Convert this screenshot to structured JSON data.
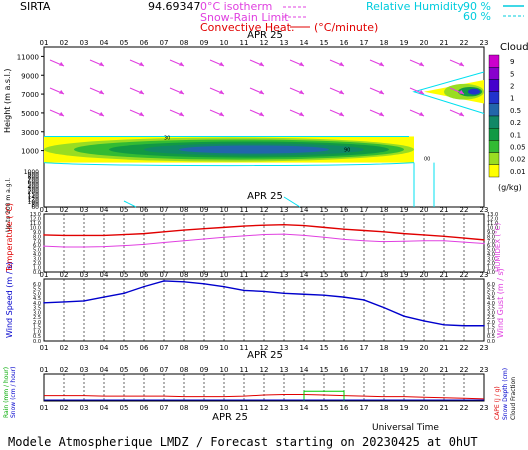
{
  "header": {
    "site": "SIRTA",
    "coords": "94.69347",
    "isotherm_label": "0°C isotherm",
    "snow_rain_label": "Snow-Rain Limit",
    "convective_label": "Convective Heat.",
    "convective_unit": "(°C/minute)",
    "rh_label": "Relative Humidity",
    "rh_90": "90 %",
    "rh_60": "60 %"
  },
  "colors": {
    "magenta": "#e040e0",
    "cyan": "#00e0f0",
    "red": "#e00000",
    "blue": "#0000cc",
    "green": "#00cc00",
    "dashed": "#000000"
  },
  "footer": {
    "universal_time": "Universal Time",
    "model": "Modele Atmospherique LMDZ / Forecast starting on 20230425 at 0hUT"
  },
  "chart_data": [
    {
      "type": "heatmap",
      "name": "clouds-wind-profile",
      "date_label": "APR 25",
      "hours": [
        "01",
        "02",
        "03",
        "04",
        "05",
        "06",
        "07",
        "08",
        "09",
        "10",
        "11",
        "12",
        "13",
        "14",
        "15",
        "16",
        "17",
        "18",
        "19",
        "20",
        "21",
        "22",
        "23"
      ],
      "ylabel": "Height (m a.s.l.)",
      "ylabel_low": "Up to 200 m a.g.l.",
      "yticks_upper": [
        11000,
        9000,
        7000,
        5000,
        3000,
        1000
      ],
      "yticks_lower": [
        1000,
        900,
        800,
        700,
        600,
        500,
        400,
        300,
        200,
        150,
        140,
        120,
        100,
        80,
        60
      ],
      "colorbar_title": "Clouds",
      "colorbar_unit": "(g/kg)",
      "colorbar_levels": [
        "9",
        "5",
        "2",
        "1",
        "0.5",
        "0.2",
        "0.1",
        "0.05",
        "0.02",
        "0.01"
      ],
      "colorbar_colors": [
        "#cc00cc",
        "#8800cc",
        "#4400cc",
        "#2233cc",
        "#2266aa",
        "#118866",
        "#119944",
        "#33bb33",
        "#99dd22",
        "#ffff00"
      ],
      "cloud_layers": [
        {
          "hours": [
            1,
            19.5
          ],
          "height_m": [
            1000,
            2500
          ],
          "max_level": "0.5"
        },
        {
          "hours": [
            19.5,
            23
          ],
          "height_m": [
            6000,
            8500
          ],
          "max_level": "1"
        }
      ],
      "contour_labels": [
        "30",
        "90",
        "00"
      ]
    },
    {
      "type": "line",
      "name": "temperature-humidex",
      "date_label": "APR 25",
      "ylabel": "Temperature (°C)",
      "ylabel_right": "HUMIDEX (°C)",
      "yticks": [
        "13.0",
        "12.0",
        "11.0",
        "10.0",
        "9.0",
        "8.0",
        "7.0",
        "6.0",
        "5.0",
        "4.0",
        "3.0",
        "2.0",
        "1.0",
        "0.0"
      ],
      "ylim": [
        0,
        13
      ],
      "x": [
        1,
        2,
        3,
        4,
        5,
        6,
        7,
        8,
        9,
        10,
        11,
        12,
        13,
        14,
        15,
        16,
        17,
        18,
        19,
        20,
        21,
        22,
        23
      ],
      "series": [
        {
          "name": "Temperature",
          "values": [
            8.3,
            8.2,
            8.2,
            8.2,
            8.4,
            8.6,
            9.0,
            9.4,
            9.7,
            10.0,
            10.3,
            10.5,
            10.6,
            10.4,
            10.0,
            9.6,
            9.3,
            9.0,
            8.6,
            8.3,
            8.0,
            7.6,
            7.2
          ]
        },
        {
          "name": "Humidex",
          "values": [
            5.8,
            5.6,
            5.6,
            5.7,
            5.9,
            6.2,
            6.6,
            7.0,
            7.4,
            7.8,
            8.1,
            8.4,
            8.5,
            8.2,
            7.8,
            7.3,
            7.0,
            6.8,
            6.9,
            7.0,
            7.0,
            6.7,
            6.4
          ]
        }
      ]
    },
    {
      "type": "line",
      "name": "wind-speed-gust",
      "date_label": "APR 25",
      "ylabel": "Wind Speed (m / s)",
      "ylabel_right": "Wind Gust (m / s)",
      "yticks": [
        "6.0",
        "5.5",
        "5.0",
        "4.5",
        "4.0",
        "3.5",
        "3.0",
        "2.5",
        "2.0",
        "1.5",
        "1.0",
        "0.5",
        "0.0"
      ],
      "ylim": [
        0,
        6.5
      ],
      "x": [
        1,
        2,
        3,
        4,
        5,
        6,
        7,
        8,
        9,
        10,
        11,
        12,
        13,
        14,
        15,
        16,
        17,
        18,
        19,
        20,
        21,
        22,
        23
      ],
      "series": [
        {
          "name": "Wind Speed",
          "values": [
            4.0,
            4.1,
            4.2,
            4.6,
            5.0,
            5.7,
            6.3,
            6.2,
            6.0,
            5.7,
            5.3,
            5.2,
            5.0,
            4.9,
            4.8,
            4.6,
            4.3,
            3.5,
            2.6,
            2.1,
            1.7,
            1.6,
            1.6
          ]
        }
      ]
    },
    {
      "type": "line",
      "name": "precipitation",
      "date_label": "APR 25",
      "ylabel": "Rain (mm / hour)",
      "ylabel2": "Snow (cm / hour)",
      "ylabel_right": "CAPE (J / g)",
      "ylabel_right2": "Snow Depth (cm)",
      "ylabel_right3": "Cloud Fraction",
      "x": [
        1,
        2,
        3,
        4,
        5,
        6,
        7,
        8,
        9,
        10,
        11,
        12,
        13,
        14,
        15,
        16,
        17,
        18,
        19,
        20,
        21,
        22,
        23
      ],
      "series": [
        {
          "name": "CAPE",
          "values": [
            0.5,
            0.5,
            0.5,
            0.45,
            0.45,
            0.45,
            0.45,
            0.4,
            0.4,
            0.4,
            0.45,
            0.55,
            0.6,
            0.6,
            0.55,
            0.5,
            0.45,
            0.4,
            0.4,
            0.35,
            0.3,
            0.25,
            0.2
          ]
        },
        {
          "name": "Rain",
          "values": [
            0,
            0,
            0,
            0,
            0,
            0,
            0,
            0,
            0,
            0,
            0,
            0,
            0,
            0,
            0.9,
            0.9,
            0,
            0,
            0,
            0,
            0,
            0,
            0
          ]
        }
      ]
    }
  ]
}
